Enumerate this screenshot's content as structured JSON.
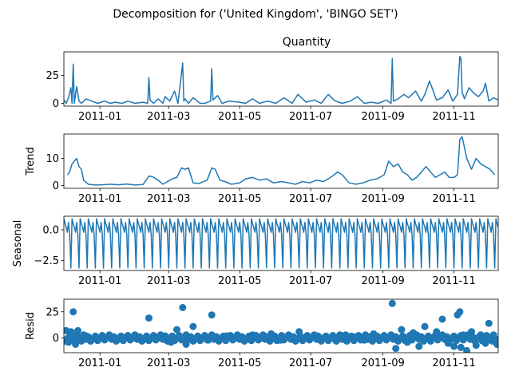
{
  "figure": {
    "suptitle": "Decomposition for ('United Kingdom', 'BINGO SET')"
  },
  "colors": {
    "series": "#1f77b4",
    "axis": "#000000",
    "background": "#ffffff"
  },
  "chart_data": [
    {
      "type": "line",
      "title": "Quantity",
      "ylabel": "",
      "xlim": [
        "2010-12-01",
        "2011-12-09"
      ],
      "ylim": [
        -2.5,
        46
      ],
      "xticks": [
        "2011-01",
        "2011-03",
        "2011-05",
        "2011-07",
        "2011-09",
        "2011-11"
      ],
      "yticks": [
        0,
        25
      ],
      "series": [
        {
          "x": [
            "2010-12-01",
            "2010-12-03",
            "2010-12-05",
            "2010-12-07",
            "2010-12-08",
            "2010-12-09",
            "2010-12-10",
            "2010-12-12",
            "2010-12-14",
            "2010-12-16",
            "2010-12-20",
            "2010-12-30",
            "2011-01-05",
            "2011-01-10",
            "2011-01-14",
            "2011-01-20",
            "2011-01-25",
            "2011-01-31",
            "2011-02-07",
            "2011-02-11",
            "2011-02-12",
            "2011-02-13",
            "2011-02-16",
            "2011-02-20",
            "2011-02-24",
            "2011-02-26",
            "2011-03-02",
            "2011-03-06",
            "2011-03-09",
            "2011-03-13",
            "2011-03-14",
            "2011-03-15",
            "2011-03-18",
            "2011-03-22",
            "2011-03-28",
            "2011-04-01",
            "2011-04-06",
            "2011-04-07",
            "2011-04-08",
            "2011-04-12",
            "2011-04-16",
            "2011-04-22",
            "2011-05-01",
            "2011-05-06",
            "2011-05-12",
            "2011-05-18",
            "2011-05-25",
            "2011-06-01",
            "2011-06-08",
            "2011-06-15",
            "2011-06-20",
            "2011-06-27",
            "2011-07-04",
            "2011-07-10",
            "2011-07-16",
            "2011-07-22",
            "2011-07-28",
            "2011-08-04",
            "2011-08-10",
            "2011-08-16",
            "2011-08-22",
            "2011-08-28",
            "2011-09-04",
            "2011-09-08",
            "2011-09-09",
            "2011-09-10",
            "2011-09-14",
            "2011-09-19",
            "2011-09-23",
            "2011-09-29",
            "2011-10-04",
            "2011-10-07",
            "2011-10-11",
            "2011-10-17",
            "2011-10-22",
            "2011-10-27",
            "2011-10-31",
            "2011-11-04",
            "2011-11-06",
            "2011-11-07",
            "2011-11-08",
            "2011-11-10",
            "2011-11-14",
            "2011-11-18",
            "2011-11-22",
            "2011-11-26",
            "2011-11-28",
            "2011-12-01",
            "2011-12-05",
            "2011-12-09"
          ],
          "y": [
            3,
            0,
            5,
            14,
            0,
            35,
            0,
            15,
            2,
            0,
            4,
            0,
            2,
            0,
            1,
            0,
            2,
            0,
            1,
            0,
            23,
            3,
            0,
            4,
            0,
            6,
            2,
            11,
            0,
            36,
            2,
            4,
            0,
            5,
            0,
            0,
            2,
            31,
            3,
            7,
            0,
            2,
            1,
            0,
            4,
            0,
            2,
            0,
            5,
            0,
            8,
            1,
            3,
            0,
            8,
            2,
            0,
            2,
            6,
            0,
            1,
            0,
            3,
            0,
            40,
            2,
            4,
            8,
            5,
            11,
            2,
            8,
            20,
            3,
            5,
            12,
            2,
            8,
            42,
            40,
            10,
            4,
            14,
            9,
            6,
            11,
            18,
            2,
            5,
            3
          ]
        }
      ]
    },
    {
      "type": "line",
      "title": "",
      "ylabel": "Trend",
      "xlim": [
        "2010-12-01",
        "2011-12-09"
      ],
      "ylim": [
        -1,
        19
      ],
      "xticks": [
        "2011-01",
        "2011-03",
        "2011-05",
        "2011-07",
        "2011-09",
        "2011-11"
      ],
      "yticks": [
        0,
        10
      ],
      "series": [
        {
          "x": [
            "2010-12-04",
            "2010-12-06",
            "2010-12-08",
            "2010-12-10",
            "2010-12-12",
            "2010-12-14",
            "2010-12-16",
            "2010-12-18",
            "2010-12-22",
            "2010-12-28",
            "2011-01-03",
            "2011-01-10",
            "2011-01-17",
            "2011-01-24",
            "2011-01-31",
            "2011-02-07",
            "2011-02-12",
            "2011-02-15",
            "2011-02-20",
            "2011-02-24",
            "2011-02-28",
            "2011-03-04",
            "2011-03-08",
            "2011-03-12",
            "2011-03-15",
            "2011-03-18",
            "2011-03-22",
            "2011-03-27",
            "2011-04-03",
            "2011-04-07",
            "2011-04-10",
            "2011-04-14",
            "2011-04-18",
            "2011-04-24",
            "2011-05-01",
            "2011-05-06",
            "2011-05-12",
            "2011-05-18",
            "2011-05-24",
            "2011-05-30",
            "2011-06-06",
            "2011-06-12",
            "2011-06-18",
            "2011-06-24",
            "2011-06-30",
            "2011-07-06",
            "2011-07-12",
            "2011-07-18",
            "2011-07-24",
            "2011-07-28",
            "2011-08-03",
            "2011-08-09",
            "2011-08-15",
            "2011-08-21",
            "2011-08-27",
            "2011-09-02",
            "2011-09-06",
            "2011-09-10",
            "2011-09-14",
            "2011-09-18",
            "2011-09-22",
            "2011-09-26",
            "2011-09-30",
            "2011-10-04",
            "2011-10-08",
            "2011-10-12",
            "2011-10-16",
            "2011-10-20",
            "2011-10-24",
            "2011-10-28",
            "2011-11-01",
            "2011-11-04",
            "2011-11-06",
            "2011-11-08",
            "2011-11-12",
            "2011-11-16",
            "2011-11-20",
            "2011-11-24",
            "2011-11-28",
            "2011-12-02",
            "2011-12-06"
          ],
          "y": [
            4,
            5,
            8,
            9,
            10,
            7,
            6,
            2,
            0.5,
            0.2,
            0.3,
            0.5,
            0.3,
            0.6,
            0.2,
            0.4,
            3.5,
            3.3,
            2,
            0.5,
            1.5,
            2.5,
            3,
            6.5,
            6,
            6.5,
            1,
            0.8,
            2,
            6.5,
            6,
            2,
            1.5,
            0.5,
            1,
            2.5,
            3,
            2,
            2.5,
            1,
            1.5,
            1,
            0.5,
            1.5,
            1,
            2,
            1.5,
            3,
            5,
            4,
            1,
            0.5,
            1,
            2,
            2.5,
            4,
            9,
            7,
            8,
            5,
            4,
            2,
            3,
            5,
            7,
            5,
            3,
            4,
            5,
            3,
            3,
            4,
            17,
            18,
            10,
            6,
            10,
            8,
            7,
            6,
            4
          ]
        }
      ]
    },
    {
      "type": "line",
      "title": "",
      "ylabel": "Seasonal",
      "xlim": [
        "2010-12-01",
        "2011-12-09"
      ],
      "ylim": [
        -3.3,
        1.1
      ],
      "xticks": [
        "2011-01",
        "2011-03",
        "2011-05",
        "2011-07",
        "2011-09",
        "2011-11"
      ],
      "yticks": [
        0.0,
        -2.5
      ],
      "yticklabels": [
        "0.0",
        "−2.5"
      ],
      "pattern": {
        "period_days": 7,
        "weekly_values": [
          0.9,
          0.5,
          0.2,
          -0.2,
          0.6,
          -0.4,
          -3.1
        ]
      }
    },
    {
      "type": "scatter",
      "title": "",
      "ylabel": "Resid",
      "xlim": [
        "2010-12-01",
        "2011-12-09"
      ],
      "ylim": [
        -14,
        37
      ],
      "xticks": [
        "2011-01",
        "2011-03",
        "2011-05",
        "2011-07",
        "2011-09",
        "2011-11"
      ],
      "yticks": [
        0,
        25
      ],
      "baseline": 0,
      "series": [
        {
          "x": [
            "2010-12-03",
            "2010-12-05",
            "2010-12-07",
            "2010-12-09",
            "2010-12-11",
            "2010-12-13",
            "2010-12-16",
            "2010-12-20",
            "2010-12-25",
            "2011-01-03",
            "2011-01-10",
            "2011-01-17",
            "2011-01-24",
            "2011-01-31",
            "2011-02-07",
            "2011-02-12",
            "2011-02-20",
            "2011-02-26",
            "2011-03-03",
            "2011-03-08",
            "2011-03-13",
            "2011-03-16",
            "2011-03-22",
            "2011-03-29",
            "2011-04-04",
            "2011-04-07",
            "2011-04-13",
            "2011-04-20",
            "2011-04-28",
            "2011-05-05",
            "2011-05-12",
            "2011-05-20",
            "2011-05-28",
            "2011-06-05",
            "2011-06-13",
            "2011-06-21",
            "2011-06-29",
            "2011-07-07",
            "2011-07-15",
            "2011-07-23",
            "2011-07-31",
            "2011-08-08",
            "2011-08-16",
            "2011-08-24",
            "2011-09-01",
            "2011-09-09",
            "2011-09-12",
            "2011-09-17",
            "2011-09-22",
            "2011-09-27",
            "2011-10-02",
            "2011-10-07",
            "2011-10-12",
            "2011-10-17",
            "2011-10-22",
            "2011-10-27",
            "2011-11-01",
            "2011-11-04",
            "2011-11-06",
            "2011-11-07",
            "2011-11-09",
            "2011-11-12",
            "2011-11-16",
            "2011-11-20",
            "2011-11-24",
            "2011-11-28",
            "2011-12-01",
            "2011-12-04",
            "2011-12-08"
          ],
          "y": [
            7,
            -4,
            6,
            25,
            -6,
            7,
            -3,
            2,
            -1,
            0,
            2,
            -1,
            1,
            0,
            -2,
            19,
            0,
            2,
            -4,
            8,
            29,
            -6,
            11,
            0,
            -2,
            22,
            -1,
            2,
            0,
            -1,
            3,
            0,
            4,
            -2,
            1,
            6,
            -1,
            2,
            0,
            -3,
            3,
            1,
            -2,
            4,
            0,
            33,
            -10,
            8,
            -4,
            5,
            -8,
            11,
            -3,
            6,
            18,
            -5,
            -8,
            22,
            25,
            -9,
            3,
            -12,
            6,
            -7,
            3,
            -5,
            14,
            -3,
            -6
          ]
        }
      ]
    }
  ]
}
